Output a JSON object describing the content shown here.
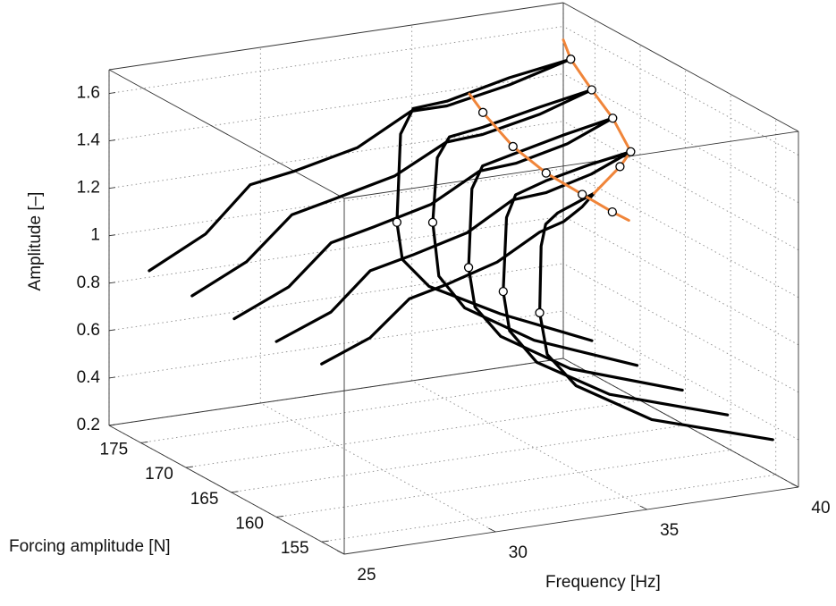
{
  "chart_data": {
    "type": "line3d",
    "xlabel": "Frequency [Hz]",
    "ylabel": "Forcing amplitude [N]",
    "zlabel": "Amplitude [–]",
    "xlim": [
      25,
      40
    ],
    "xticks": [
      25,
      30,
      35,
      40
    ],
    "ylim": [
      152.5,
      178.5
    ],
    "yticks": [
      155,
      160,
      165,
      170,
      175
    ],
    "zlim": [
      0.2,
      1.7
    ],
    "zticks": [
      0.2,
      0.4,
      0.6,
      0.8,
      1,
      1.2,
      1.4,
      1.6
    ],
    "grid": true,
    "series": [
      {
        "color": "#000000",
        "forcing": 175,
        "frequency": [
          25.28,
          27.14,
          28.62,
          30.09,
          32.16,
          33.93,
          35.11,
          37.18,
          39.2,
          37.18,
          35.11,
          34.0,
          33.58,
          33.46,
          33.64,
          34.52,
          36.88,
          39.9
        ],
        "amplitude": [
          0.92,
          1.04,
          1.22,
          1.25,
          1.31,
          1.43,
          1.43,
          1.48,
          1.55,
          1.51,
          1.45,
          1.44,
          1.34,
          0.97,
          0.81,
          0.68,
          0.52,
          0.35
        ],
        "fold_frequency": 33.46,
        "fold_amplitude": 0.97
      },
      {
        "color": "#000000",
        "forcing": 170,
        "frequency": [
          25.2,
          27.0,
          28.5,
          29.9,
          31.9,
          33.6,
          34.8,
          36.7,
          38.4,
          36.7,
          34.8,
          33.7,
          33.3,
          33.15,
          33.35,
          34.2,
          36.5,
          39.9
        ],
        "amplitude": [
          0.92,
          1.03,
          1.2,
          1.24,
          1.3,
          1.41,
          1.42,
          1.47,
          1.54,
          1.5,
          1.45,
          1.43,
          1.35,
          1.08,
          0.85,
          0.7,
          0.52,
          0.35
        ],
        "fold_frequency": 33.15,
        "fold_amplitude": 1.08
      },
      {
        "color": "#000000",
        "forcing": 165,
        "frequency": [
          25.1,
          26.9,
          28.3,
          29.7,
          31.6,
          33.2,
          34.4,
          36.1,
          37.6,
          36.0,
          34.3,
          33.3,
          32.95,
          32.84,
          33.05,
          33.9,
          36.2,
          39.9
        ],
        "amplitude": [
          0.93,
          1.03,
          1.19,
          1.23,
          1.29,
          1.4,
          1.41,
          1.46,
          1.54,
          1.5,
          1.45,
          1.42,
          1.33,
          1.0,
          0.83,
          0.69,
          0.51,
          0.35
        ],
        "fold_frequency": 32.84,
        "fold_amplitude": 1.0
      },
      {
        "color": "#000000",
        "forcing": 160,
        "frequency": [
          25.0,
          26.8,
          28.1,
          29.5,
          31.3,
          32.8,
          33.9,
          35.4,
          36.7,
          35.3,
          33.9,
          32.9,
          32.6,
          32.49,
          32.7,
          33.6,
          36.0,
          39.9
        ],
        "amplitude": [
          0.94,
          1.03,
          1.18,
          1.22,
          1.28,
          1.39,
          1.4,
          1.45,
          1.52,
          1.49,
          1.45,
          1.41,
          1.32,
          1.01,
          0.84,
          0.69,
          0.51,
          0.35
        ],
        "fold_frequency": 32.49,
        "fold_amplitude": 1.01
      },
      {
        "color": "#000000",
        "forcing": 155,
        "frequency": [
          25.0,
          26.6,
          27.9,
          29.2,
          30.8,
          32.2,
          33.0,
          33.6,
          34.0,
          33.4,
          32.8,
          32.4,
          32.25,
          32.2,
          32.45,
          33.4,
          35.9,
          39.9
        ],
        "amplitude": [
          0.95,
          1.03,
          1.17,
          1.21,
          1.27,
          1.37,
          1.4,
          1.45,
          1.5,
          1.47,
          1.44,
          1.4,
          1.31,
          1.03,
          0.85,
          0.7,
          0.51,
          0.35
        ],
        "fold_frequency": 32.2,
        "fold_amplitude": 1.03
      }
    ],
    "backbones": [
      {
        "color": "#f0853a",
        "forcing": [
          177.5,
          175,
          170,
          165,
          160,
          157.5,
          155
        ],
        "frequency": [
          39.7,
          39.2,
          38.4,
          37.6,
          36.7,
          35.6,
          34.0
        ],
        "amplitude": [
          1.57,
          1.55,
          1.54,
          1.54,
          1.52,
          1.53,
          1.5
        ]
      },
      {
        "color": "#f0853a",
        "forcing": [
          177.5,
          175,
          170,
          165,
          160,
          155,
          152.5
        ],
        "frequency": [
          36.6,
          36.3,
          35.8,
          35.4,
          35.1,
          34.6,
          34.4
        ],
        "amplitude": [
          1.4,
          1.38,
          1.35,
          1.35,
          1.37,
          1.41,
          1.43
        ]
      }
    ]
  }
}
